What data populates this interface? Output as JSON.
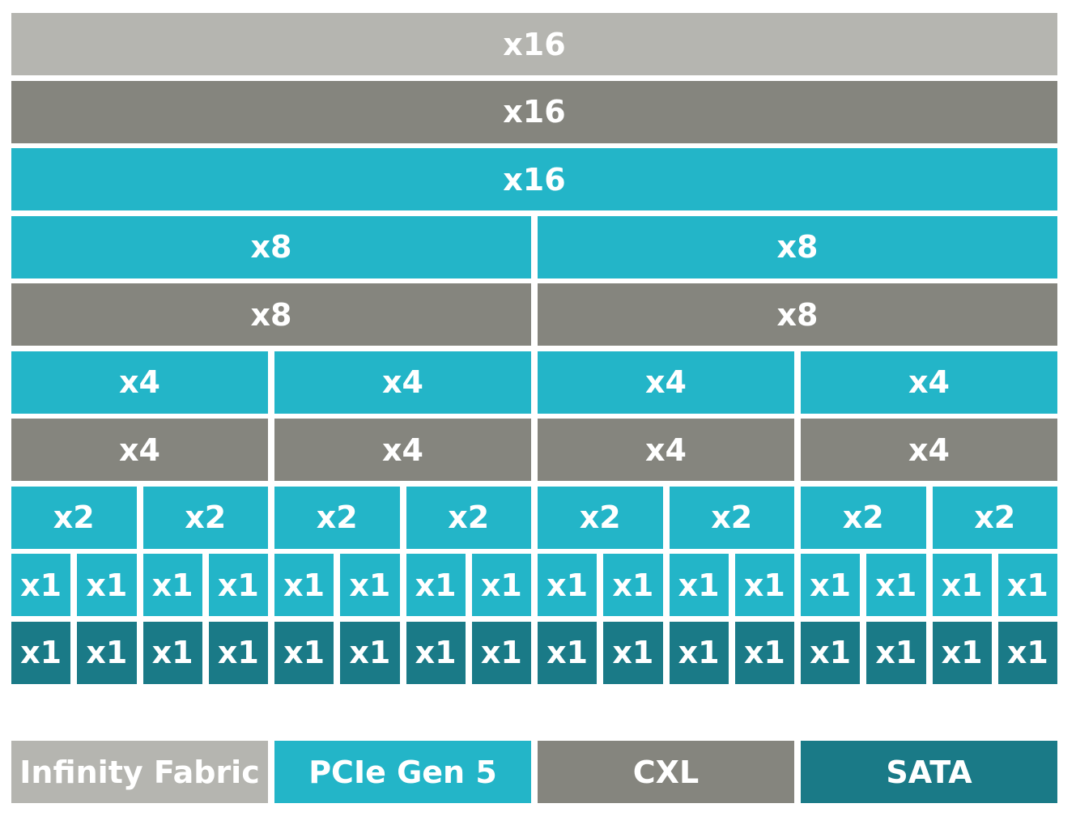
{
  "rows": [
    {
      "color": "#b5b5b0",
      "cells": [
        "x16"
      ]
    },
    {
      "color": "#85857e",
      "cells": [
        "x16"
      ]
    },
    {
      "color": "#23b5c8",
      "cells": [
        "x16"
      ]
    },
    {
      "color": "#23b5c8",
      "cells": [
        "x8",
        "x8"
      ]
    },
    {
      "color": "#85857e",
      "cells": [
        "x8",
        "x8"
      ]
    },
    {
      "color": "#23b5c8",
      "cells": [
        "x4",
        "x4",
        "x4",
        "x4"
      ]
    },
    {
      "color": "#85857e",
      "cells": [
        "x4",
        "x4",
        "x4",
        "x4"
      ]
    },
    {
      "color": "#23b5c8",
      "cells": [
        "x2",
        "x2",
        "x2",
        "x2",
        "x2",
        "x2",
        "x2",
        "x2"
      ]
    },
    {
      "color": "#23b5c8",
      "cells": [
        "x1",
        "x1",
        "x1",
        "x1",
        "x1",
        "x1",
        "x1",
        "x1",
        "x1",
        "x1",
        "x1",
        "x1",
        "x1",
        "x1",
        "x1",
        "x1"
      ]
    },
    {
      "color": "#1a7a87",
      "cells": [
        "x1",
        "x1",
        "x1",
        "x1",
        "x1",
        "x1",
        "x1",
        "x1",
        "x1",
        "x1",
        "x1",
        "x1",
        "x1",
        "x1",
        "x1",
        "x1"
      ]
    }
  ],
  "legend": [
    {
      "label": "Infinity Fabric",
      "color": "#b5b5b0"
    },
    {
      "label": "PCIe Gen 5",
      "color": "#23b5c8"
    },
    {
      "label": "CXL",
      "color": "#85857e"
    },
    {
      "label": "SATA",
      "color": "#1a7a87"
    }
  ]
}
